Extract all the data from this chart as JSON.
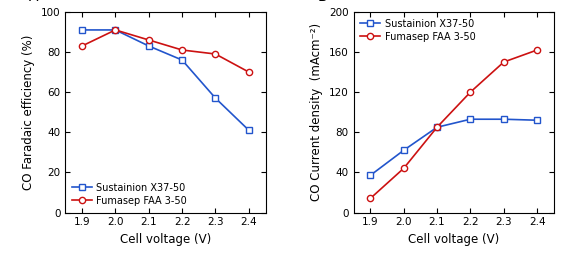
{
  "voltage": [
    1.9,
    2.0,
    2.1,
    2.2,
    2.3,
    2.4
  ],
  "panel_A": {
    "title": "A",
    "ylabel": "CO Faradaic efficiency (%)",
    "xlabel": "Cell voltage (V)",
    "ylim": [
      0,
      100
    ],
    "yticks": [
      0,
      20,
      40,
      60,
      80,
      100
    ],
    "yticklabels": [
      "0",
      "20",
      "40",
      "60",
      "80",
      "100"
    ],
    "xlim": [
      1.85,
      2.45
    ],
    "blue_data": [
      91,
      91,
      83,
      76,
      57,
      41
    ],
    "red_data": [
      83,
      91,
      86,
      81,
      79,
      70
    ],
    "legend_loc": "lower left"
  },
  "panel_B": {
    "title": "B",
    "ylabel": "CO Current density  (mAcm⁻²)",
    "xlabel": "Cell voltage (V)",
    "ylim": [
      0,
      200
    ],
    "yticks": [
      0,
      40,
      80,
      120,
      160,
      200
    ],
    "yticklabels": [
      "0",
      "40",
      "80",
      "120",
      "160",
      "200"
    ],
    "xlim": [
      1.85,
      2.45
    ],
    "blue_data": [
      37,
      62,
      85,
      93,
      93,
      92
    ],
    "red_data": [
      14,
      44,
      85,
      120,
      150,
      162
    ],
    "legend_loc": "upper left"
  },
  "blue_color": "#2255CC",
  "red_color": "#CC1111",
  "label_blue": "Sustainion X37-50",
  "label_red": "Fumasep FAA 3-50",
  "legend_fontsize": 7.0,
  "axis_label_fontsize": 8.5,
  "tick_fontsize": 7.5,
  "title_fontsize": 10,
  "linewidth": 1.2,
  "markersize": 4.5
}
